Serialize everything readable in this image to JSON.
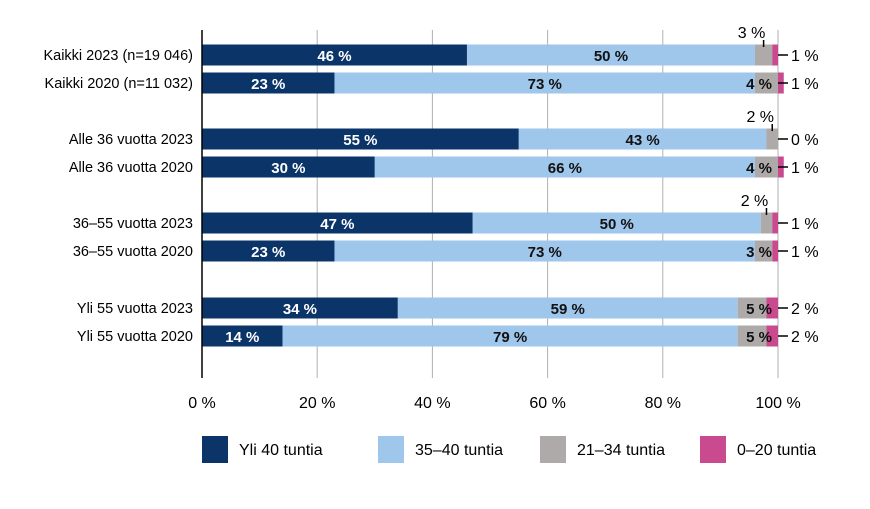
{
  "chart_data": {
    "type": "bar",
    "orientation": "horizontal",
    "stacked": true,
    "categories": [
      "Kaikki 2023 (n=19 046)",
      "Kaikki 2020 (n=11 032)",
      "Alle 36 vuotta 2023",
      "Alle 36 vuotta 2020",
      "36–55 vuotta 2023",
      "36–55 vuotta 2020",
      "Yli 55 vuotta 2023",
      "Yli 55 vuotta 2020"
    ],
    "series": [
      {
        "name": "Yli 40 tuntia",
        "color": "#0b3469",
        "values": [
          46,
          23,
          55,
          30,
          47,
          23,
          34,
          14
        ]
      },
      {
        "name": "35–40 tuntia",
        "color": "#9fc6eb",
        "values": [
          50,
          73,
          43,
          66,
          50,
          73,
          59,
          79
        ]
      },
      {
        "name": "21–34 tuntia",
        "color": "#aeaaaa",
        "values": [
          3,
          4,
          2,
          4,
          2,
          3,
          5,
          5
        ]
      },
      {
        "name": "0–20 tuntia",
        "color": "#c94a8f",
        "values": [
          1,
          1,
          0,
          1,
          1,
          1,
          2,
          2
        ]
      }
    ],
    "labels": {
      "s0": [
        "46 %",
        "23 %",
        "55 %",
        "30 %",
        "47 %",
        "23 %",
        "34 %",
        "14 %"
      ],
      "s1": [
        "50 %",
        "73 %",
        "43 %",
        "66 %",
        "50 %",
        "73 %",
        "59 %",
        "79 %"
      ],
      "s2": [
        "3 %",
        "4 %",
        "2 %",
        "4 %",
        "2 %",
        "3 %",
        "5 %",
        "5 %"
      ],
      "s3": [
        "1 %",
        "1 %",
        "0 %",
        "1 %",
        "1 %",
        "1 %",
        "2 %",
        "2 %"
      ]
    },
    "x_ticks": [
      "0 %",
      "20 %",
      "40 %",
      "60 %",
      "80 %",
      "100 %"
    ],
    "xlim": [
      0,
      100
    ],
    "grid": true,
    "legend_position": "bottom"
  }
}
